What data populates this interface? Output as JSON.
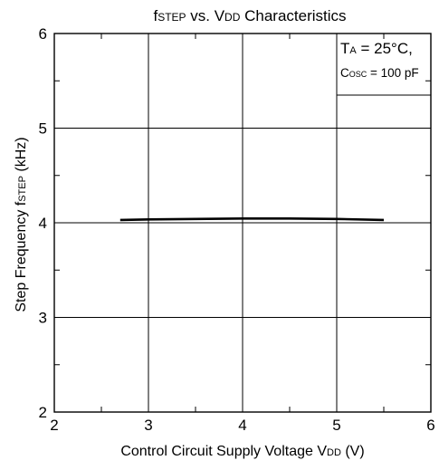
{
  "chart_data": {
    "type": "line",
    "title": {
      "f": "f",
      "f_sub": "STEP",
      "mid": " vs. V",
      "v_sub": "DD",
      "tail": " Characteristics"
    },
    "xlabel": {
      "main": "Control Circuit Supply Voltage V",
      "sub": "DD",
      "tail": " (V)"
    },
    "ylabel": {
      "main": "Step Frequency f",
      "sub": "STEP",
      "tail": " (kHz)"
    },
    "xlim": [
      2,
      6
    ],
    "ylim": [
      2,
      6
    ],
    "x_ticks": [
      "2",
      "3",
      "4",
      "5",
      "6"
    ],
    "y_ticks": [
      "2",
      "3",
      "4",
      "5",
      "6"
    ],
    "grid": true,
    "minor_ticks": true,
    "annotation": {
      "line1_main": "T",
      "line1_sub": "A",
      "line1_tail": " = 25°C,",
      "line2_main": "C",
      "line2_sub": "OSC",
      "line2_tail": " = 100 pF"
    },
    "series": [
      {
        "x": [
          2.7,
          3.0,
          3.5,
          4.0,
          4.2,
          4.5,
          5.0,
          5.5
        ],
        "y": [
          4.03,
          4.035,
          4.04,
          4.045,
          4.045,
          4.045,
          4.04,
          4.03
        ],
        "color": "#000000"
      }
    ]
  }
}
